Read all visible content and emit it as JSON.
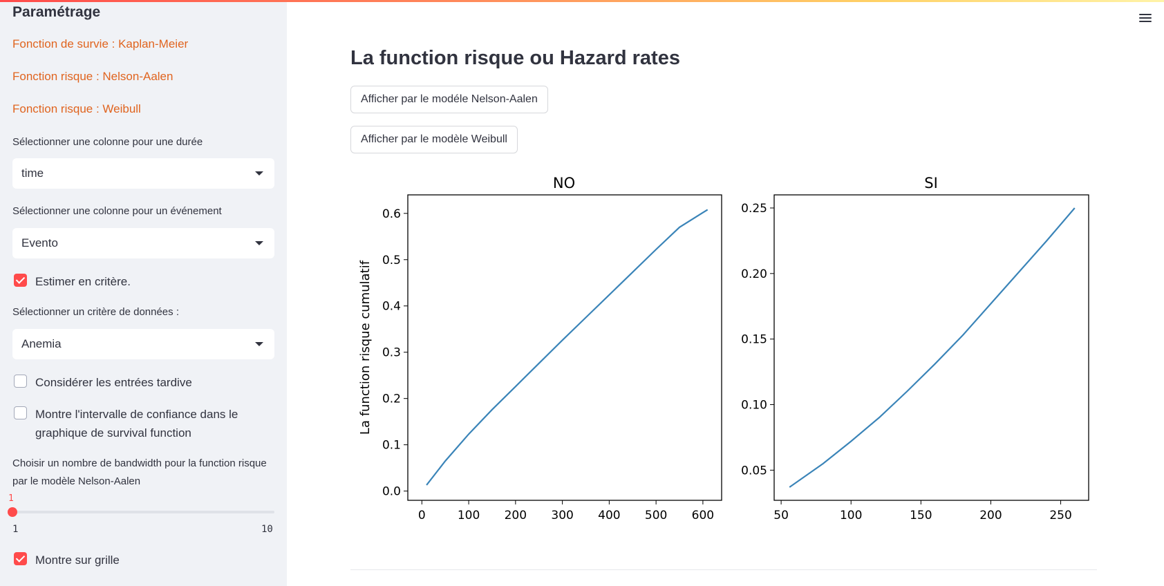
{
  "sidebar": {
    "title": "Paramétrage",
    "links": [
      "Fonction de survie : Kaplan-Meier",
      "Fonction risque : Nelson-Aalen",
      "Fonction risque : Weibull"
    ],
    "duration_label": "Sélectionner une colonne pour une durée",
    "duration_value": "time",
    "event_label": "Sélectionner une colonne pour un événement",
    "event_value": "Evento",
    "estimate_label": "Estimer en critère.",
    "estimate_checked": true,
    "criterion_label": "Sélectionner un critère de données :",
    "criterion_value": "Anemia",
    "late_entries_label": "Considérer les entrées tardive",
    "late_entries_checked": false,
    "ci_label": "Montre l'intervalle de confiance dans le graphique de survival function",
    "ci_checked": false,
    "bandwidth_label": "Choisir un nombre de bandwidth pour la function risque par le modèle Nelson-Aalen",
    "bandwidth_value": "1",
    "bandwidth_min": "1",
    "bandwidth_max": "10",
    "bandwidth_fraction": 0,
    "grid_label": "Montre sur grille",
    "grid_checked": true
  },
  "main": {
    "title": "La function risque ou Hazard rates",
    "btn_nelson": "Afficher par le modéle Nelson-Aalen",
    "btn_weibull": "Afficher par le modèle Weibull"
  },
  "colors": {
    "accent": "#ff4b4b",
    "link": "#e0641f",
    "line": "#3a84b8"
  },
  "chart_data": [
    {
      "type": "line",
      "title": "NO",
      "ylabel": "La function risque cumulatif",
      "xlim": [
        -30,
        640
      ],
      "ylim": [
        -0.02,
        0.64
      ],
      "xticks": [
        0,
        100,
        200,
        300,
        400,
        500,
        600
      ],
      "yticks": [
        0.0,
        0.1,
        0.2,
        0.3,
        0.4,
        0.5,
        0.6
      ],
      "x": [
        10,
        50,
        100,
        150,
        200,
        250,
        300,
        350,
        400,
        450,
        500,
        550,
        610
      ],
      "y": [
        0.013,
        0.065,
        0.123,
        0.176,
        0.226,
        0.276,
        0.326,
        0.375,
        0.424,
        0.473,
        0.522,
        0.57,
        0.608
      ]
    },
    {
      "type": "line",
      "title": "SI",
      "ylabel": "",
      "xlim": [
        45,
        270
      ],
      "ylim": [
        0.027,
        0.26
      ],
      "xticks": [
        50,
        100,
        150,
        200,
        250
      ],
      "yticks": [
        0.05,
        0.1,
        0.15,
        0.2,
        0.25
      ],
      "x": [
        56,
        80,
        100,
        120,
        140,
        160,
        180,
        200,
        220,
        240,
        260
      ],
      "y": [
        0.037,
        0.055,
        0.072,
        0.09,
        0.11,
        0.131,
        0.153,
        0.177,
        0.201,
        0.225,
        0.25
      ]
    }
  ]
}
